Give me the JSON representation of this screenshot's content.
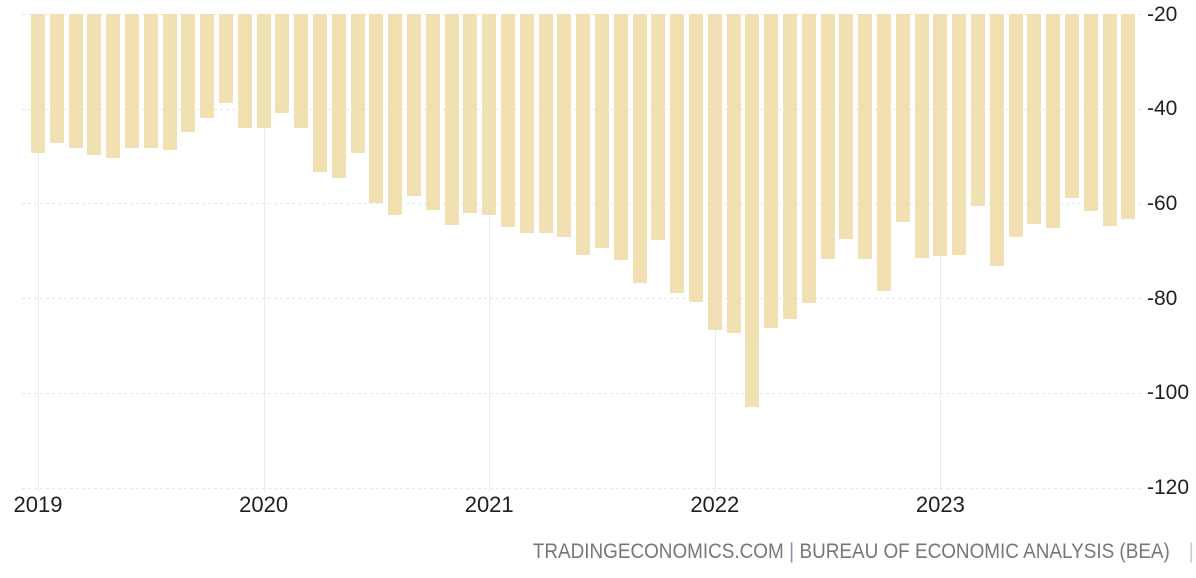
{
  "chart_data": {
    "type": "bar",
    "title": "",
    "xlabel": "",
    "ylabel": "",
    "ylim": [
      -120,
      -20
    ],
    "y_ticks": [
      -20,
      -40,
      -60,
      -80,
      -100,
      -120
    ],
    "y_tick_labels": [
      "-20",
      "-40",
      "-60",
      "-80",
      "-100",
      "-120"
    ],
    "x_tick_labels": [
      "2019",
      "2020",
      "2021",
      "2022",
      "2023"
    ],
    "x_tick_month_indices": [
      0,
      12,
      24,
      36,
      48
    ],
    "grid": {
      "horizontal": "dashed",
      "vertical": "year ticks"
    },
    "legend": null,
    "bar_color": "#f0e0b2",
    "categories": [
      "2019-01",
      "2019-02",
      "2019-03",
      "2019-04",
      "2019-05",
      "2019-06",
      "2019-07",
      "2019-08",
      "2019-09",
      "2019-10",
      "2019-11",
      "2019-12",
      "2020-01",
      "2020-02",
      "2020-03",
      "2020-04",
      "2020-05",
      "2020-06",
      "2020-07",
      "2020-08",
      "2020-09",
      "2020-10",
      "2020-11",
      "2020-12",
      "2021-01",
      "2021-02",
      "2021-03",
      "2021-04",
      "2021-05",
      "2021-06",
      "2021-07",
      "2021-08",
      "2021-09",
      "2021-10",
      "2021-11",
      "2021-12",
      "2022-01",
      "2022-02",
      "2022-03",
      "2022-04",
      "2022-05",
      "2022-06",
      "2022-07",
      "2022-08",
      "2022-09",
      "2022-10",
      "2022-11",
      "2022-12",
      "2023-01",
      "2023-02",
      "2023-03",
      "2023-04",
      "2023-05",
      "2023-06",
      "2023-07",
      "2023-08",
      "2023-09",
      "2023-10",
      "2023-11"
    ],
    "values": [
      -49.3,
      -47.2,
      -48.3,
      -49.7,
      -50.4,
      -48.3,
      -48.3,
      -48.7,
      -44.9,
      -41.9,
      -38.8,
      -44.1,
      -44.1,
      -40.9,
      -44.1,
      -53.3,
      -54.7,
      -49.4,
      -59.9,
      -62.4,
      -58.5,
      -61.4,
      -64.5,
      -62.0,
      -62.4,
      -64.9,
      -66.2,
      -66.2,
      -67.1,
      -70.8,
      -69.4,
      -71.9,
      -76.8,
      -67.7,
      -78.9,
      -80.8,
      -86.7,
      -87.3,
      -102.9,
      -86.3,
      -84.4,
      -81.0,
      -71.7,
      -67.5,
      -71.7,
      -78.6,
      -63.9,
      -71.5,
      -71.1,
      -70.8,
      -60.5,
      -73.2,
      -67.1,
      -64.3,
      -65.1,
      -58.8,
      -61.6,
      -64.7,
      -63.3
    ]
  },
  "attribution": {
    "source_left": "TRADINGECONOMICS.COM",
    "separator": "|",
    "source_right": "BUREAU OF ECONOMIC ANALYSIS (BEA)",
    "trailing_separator": "|"
  },
  "colors": {
    "bar": "#f0e0b2",
    "horizontal_grid": "#e7e7e7",
    "vertical_grid": "#dadada",
    "axis_label": "#1f1f1f",
    "attribution_text": "#74787b",
    "attribution_separator": "#8193a6"
  }
}
